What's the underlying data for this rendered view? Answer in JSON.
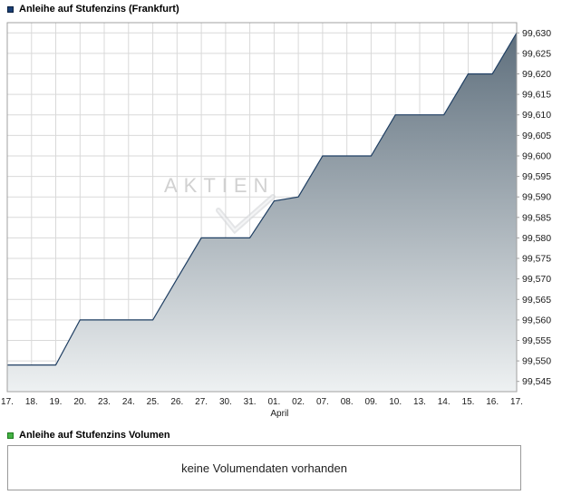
{
  "header": {
    "title": "Anleihe auf Stufenzins (Frankfurt)",
    "swatch_color": "#1a3e75",
    "swatch_border": "#0a1f3d"
  },
  "watermark": {
    "text": "AKTIEN"
  },
  "chart_data": {
    "type": "area",
    "title": "Anleihe auf Stufenzins (Frankfurt)",
    "xlabel": "",
    "ylabel": "",
    "categories": [
      "17.",
      "18.",
      "19.",
      "20.",
      "23.",
      "24.",
      "25.",
      "26.",
      "27.",
      "30.",
      "31.",
      "01.",
      "02.",
      "07.",
      "08.",
      "09.",
      "10.",
      "13.",
      "14.",
      "15.",
      "16.",
      "17."
    ],
    "series": [
      {
        "name": "Anleihe auf Stufenzins",
        "values": [
          99.549,
          99.549,
          99.549,
          99.56,
          99.56,
          99.56,
          99.56,
          99.57,
          99.58,
          99.58,
          99.58,
          99.589,
          99.59,
          99.6,
          99.6,
          99.6,
          99.61,
          99.61,
          99.61,
          99.62,
          99.62,
          99.63
        ]
      }
    ],
    "ylim": [
      99.5425,
      99.6325
    ],
    "y_ticks": [
      {
        "value": 99.545,
        "label": "99,545"
      },
      {
        "value": 99.55,
        "label": "99,550"
      },
      {
        "value": 99.555,
        "label": "99,555"
      },
      {
        "value": 99.56,
        "label": "99,560"
      },
      {
        "value": 99.565,
        "label": "99,565"
      },
      {
        "value": 99.57,
        "label": "99,570"
      },
      {
        "value": 99.575,
        "label": "99,575"
      },
      {
        "value": 99.58,
        "label": "99,580"
      },
      {
        "value": 99.585,
        "label": "99,585"
      },
      {
        "value": 99.59,
        "label": "99,590"
      },
      {
        "value": 99.595,
        "label": "99,595"
      },
      {
        "value": 99.6,
        "label": "99,600"
      },
      {
        "value": 99.605,
        "label": "99,605"
      },
      {
        "value": 99.61,
        "label": "99,610"
      },
      {
        "value": 99.615,
        "label": "99,615"
      },
      {
        "value": 99.62,
        "label": "99,620"
      },
      {
        "value": 99.625,
        "label": "99,625"
      },
      {
        "value": 99.63,
        "label": "99,630"
      }
    ],
    "month_label": {
      "text": "April",
      "index": 11
    },
    "grid": true,
    "legend_position": "top-left",
    "colors": {
      "line": "#1f3f63",
      "fill_top": "#5a6b79",
      "fill_bottom": "#eef1f2",
      "grid": "#d9d9d9",
      "border": "#a0a0a0",
      "axis_text": "#1a1a1a"
    }
  },
  "volume": {
    "legend_label": "Anleihe auf Stufenzins Volumen",
    "swatch_color": "#44b244",
    "swatch_border": "#1c7a1c",
    "empty_message": "keine Volumendaten vorhanden"
  }
}
